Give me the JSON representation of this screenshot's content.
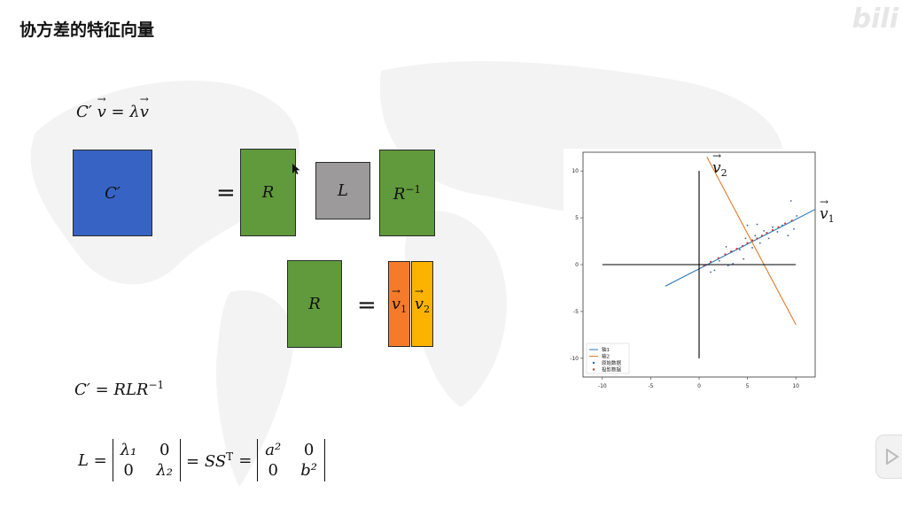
{
  "slide": {
    "title": "协方差的特征向量",
    "watermark": "bili"
  },
  "formulas": {
    "eig_lhs": "C′",
    "eig_eq": " = λ",
    "v": "v",
    "cprime": "C′",
    "eq1": "=",
    "r": "R",
    "l": "L",
    "rinv_base": "R",
    "rinv_sup": "−1",
    "r2": "R",
    "eq2": "=",
    "v1_sub": "1",
    "v2_sub": "2",
    "decomp_main": "C′ = RLR",
    "decomp_sup": "−1",
    "L_eq": "L =",
    "lambda1": "λ₁",
    "zero": "0",
    "lambda2": "λ₂",
    "sst": "= SS",
    "sst_sup": "T",
    "eq3": "=",
    "a2": "a²",
    "b2": "b²"
  },
  "chart_data": {
    "type": "scatter",
    "xlim": [
      -12,
      12
    ],
    "ylim": [
      -12,
      12
    ],
    "xticks": [
      -10,
      -5,
      0,
      5,
      10
    ],
    "yticks": [
      -10,
      -5,
      0,
      5,
      10
    ],
    "legend_position": "bottom-left",
    "annotations": [
      "v₁",
      "v₂"
    ],
    "series": [
      {
        "name": "轴1",
        "color": "#2a79b8",
        "kind": "line",
        "points": [
          [
            -3.5,
            -2.3
          ],
          [
            12,
            5.9
          ]
        ]
      },
      {
        "name": "轴2",
        "color": "#e07b2a",
        "kind": "line",
        "points": [
          [
            0.8,
            11.5
          ],
          [
            10,
            -6.4
          ]
        ]
      },
      {
        "name": "原始数据",
        "color": "#3a5f98",
        "kind": "scatter",
        "points": [
          [
            1.2,
            -0.8
          ],
          [
            1.6,
            -0.6
          ],
          [
            2.1,
            0.4
          ],
          [
            2.8,
            1.9
          ],
          [
            3.0,
            -0.1
          ],
          [
            3.4,
            1.4
          ],
          [
            3.5,
            0.1
          ],
          [
            4.2,
            1.6
          ],
          [
            4.6,
            0.6
          ],
          [
            4.8,
            2.8
          ],
          [
            5.0,
            4.2
          ],
          [
            5.5,
            1.8
          ],
          [
            5.8,
            3.1
          ],
          [
            6.0,
            4.3
          ],
          [
            6.3,
            2.3
          ],
          [
            6.7,
            3.6
          ],
          [
            7.2,
            2.8
          ],
          [
            7.6,
            4.0
          ],
          [
            8.1,
            3.5
          ],
          [
            8.6,
            4.2
          ],
          [
            9.2,
            3.1
          ],
          [
            9.8,
            3.8
          ],
          [
            10.1,
            5.2
          ],
          [
            9.5,
            6.8
          ]
        ]
      },
      {
        "name": "投影数据",
        "color": "#c8383a",
        "kind": "scatter",
        "points": [
          [
            0.5,
            -0.1
          ],
          [
            1.2,
            0.3
          ],
          [
            2.0,
            0.7
          ],
          [
            2.7,
            1.1
          ],
          [
            3.3,
            1.4
          ],
          [
            3.9,
            1.7
          ],
          [
            4.5,
            2.0
          ],
          [
            5.0,
            2.3
          ],
          [
            5.5,
            2.6
          ],
          [
            6.0,
            2.8
          ],
          [
            6.5,
            3.1
          ],
          [
            7.0,
            3.4
          ],
          [
            7.6,
            3.7
          ],
          [
            8.2,
            4.0
          ],
          [
            8.9,
            4.4
          ],
          [
            9.6,
            4.7
          ]
        ]
      },
      {
        "name": "x-axis",
        "color": "#000000",
        "kind": "line",
        "points": [
          [
            -10,
            0
          ],
          [
            10,
            0
          ]
        ]
      },
      {
        "name": "y-axis",
        "color": "#000000",
        "kind": "line",
        "points": [
          [
            0,
            -10
          ],
          [
            0,
            10
          ]
        ]
      }
    ]
  }
}
